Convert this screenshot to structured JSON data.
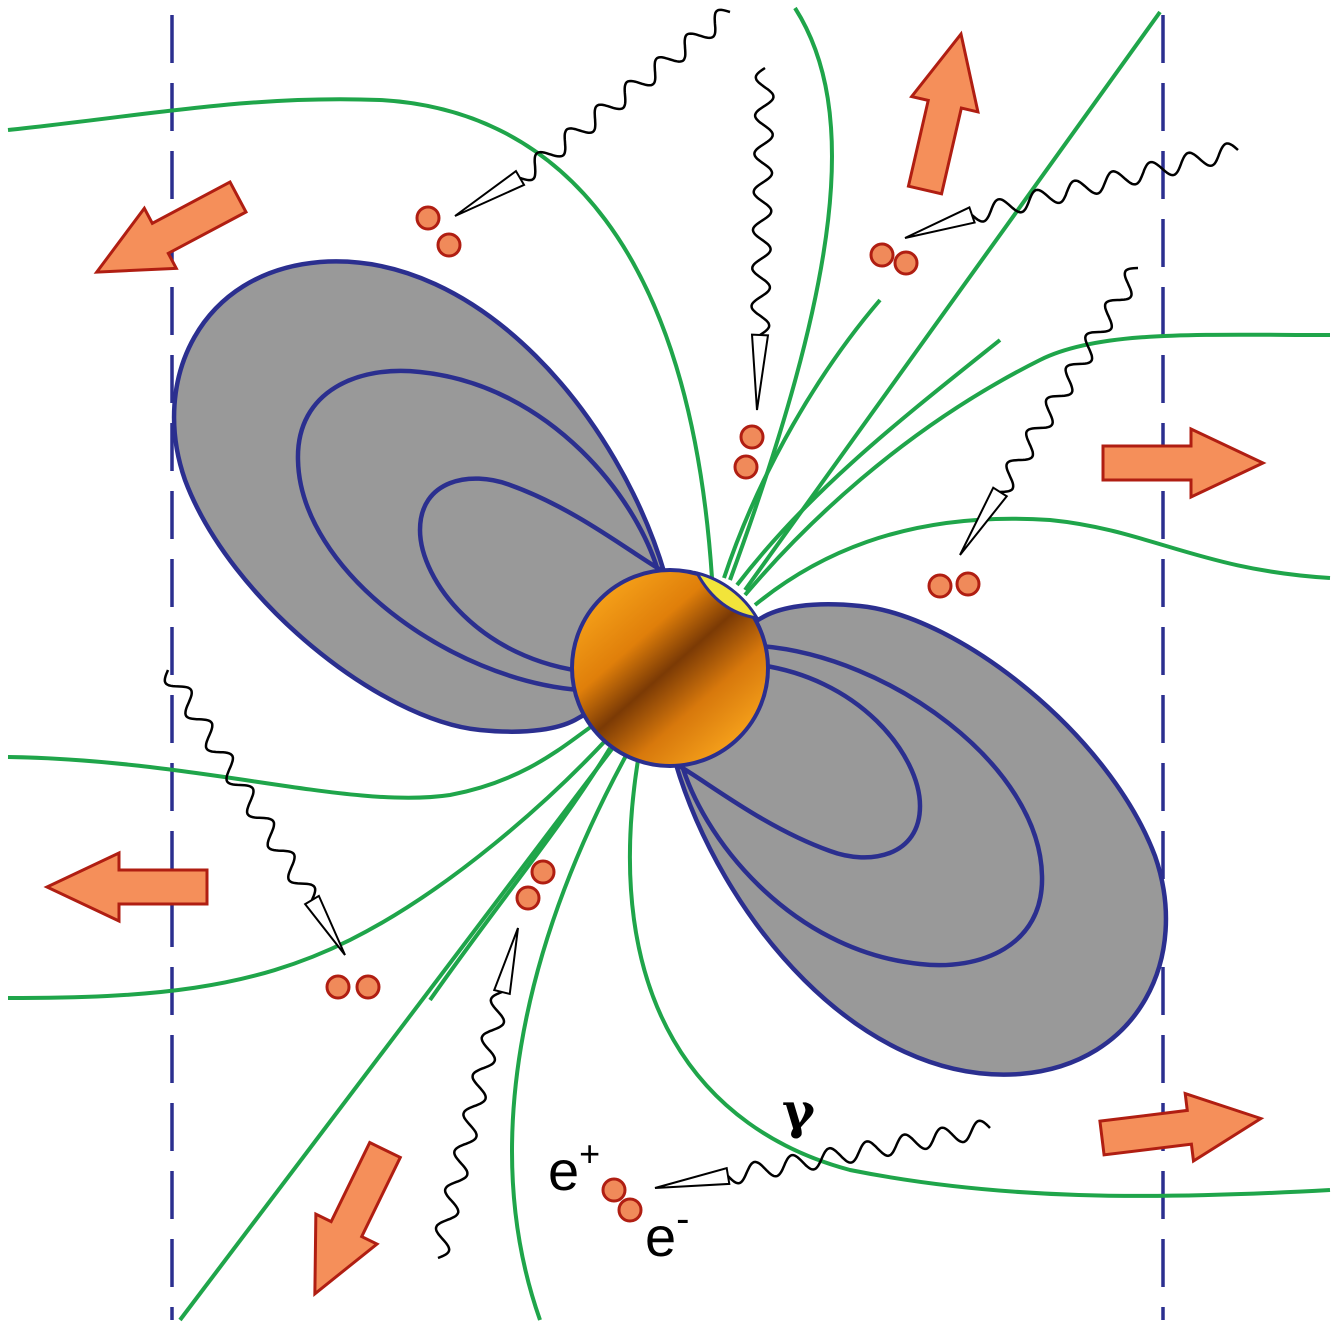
{
  "labels": {
    "gamma": "γ",
    "positron": {
      "base": "e",
      "sup": "+"
    },
    "electron": {
      "base": "e",
      "sup": "-"
    }
  }
}
